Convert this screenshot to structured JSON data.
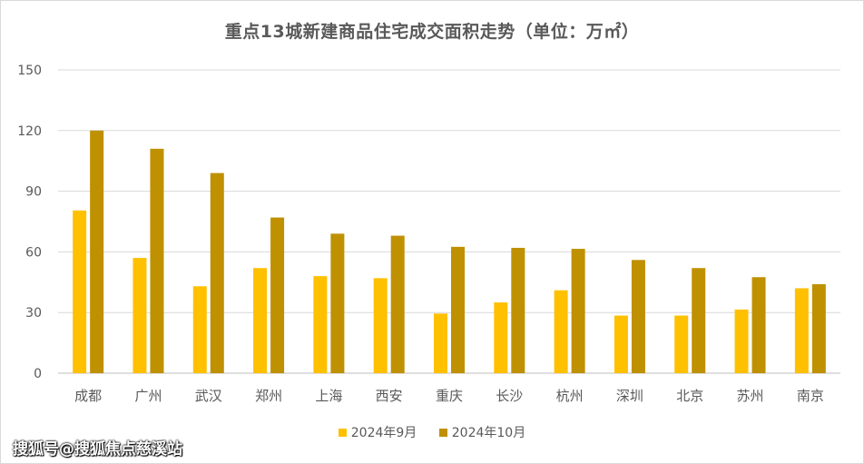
{
  "chart_data": {
    "type": "bar",
    "title": "重点13城新建商品住宅成交面积走势（单位：万㎡）",
    "xlabel": "",
    "ylabel": "",
    "ylim": [
      0,
      150
    ],
    "yticks": [
      0,
      30,
      60,
      90,
      120,
      150
    ],
    "ytick_labels": [
      "0",
      "30",
      "60",
      "90",
      "120",
      "150"
    ],
    "grid": true,
    "legend_position": "bottom",
    "categories": [
      "成都",
      "广州",
      "武汉",
      "郑州",
      "上海",
      "西安",
      "重庆",
      "长沙",
      "杭州",
      "深圳",
      "北京",
      "苏州",
      "南京"
    ],
    "series": [
      {
        "name": "2024年9月",
        "color": "#FFC000",
        "values": [
          80.5,
          57,
          43,
          52,
          48,
          47,
          29.5,
          35,
          41,
          28.5,
          28.5,
          31.5,
          42
        ]
      },
      {
        "name": "2024年10月",
        "color": "#BF9000",
        "values": [
          120,
          111,
          99,
          77,
          69,
          68,
          62.5,
          62,
          61.5,
          56,
          52,
          47.5,
          44
        ]
      }
    ]
  },
  "watermark": "搜狐号@搜狐焦点慈溪站",
  "colors": {
    "axis_text": "#595959",
    "gridline": "#d9d9d9"
  }
}
